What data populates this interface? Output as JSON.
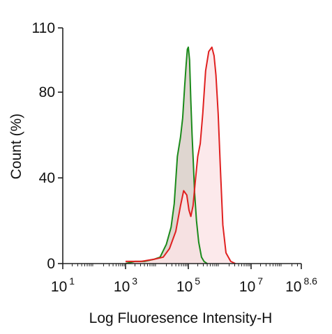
{
  "chart_data": {
    "type": "area",
    "xlabel": "Log Fluoresence Intensity-H",
    "ylabel": "Count  (%)",
    "x_scale": "log10",
    "xlim": [
      1,
      8.6
    ],
    "ylim": [
      0,
      110
    ],
    "x_ticks": [
      {
        "base": "10",
        "exp": "1",
        "value": 1
      },
      {
        "base": "10",
        "exp": "3",
        "value": 3
      },
      {
        "base": "10",
        "exp": "5",
        "value": 5
      },
      {
        "base": "10",
        "exp": "7",
        "value": 7
      },
      {
        "base": "10",
        "exp": "8.6",
        "value": 8.6
      }
    ],
    "y_ticks": [
      "0",
      "40",
      "80",
      "110"
    ],
    "y_tick_values": [
      0,
      40,
      80,
      110
    ],
    "grid": false,
    "legend": "none",
    "series": [
      {
        "color": "#1a8a1a",
        "fill": "#d9cfc8",
        "x": [
          3.0,
          3.3,
          3.6,
          3.9,
          4.1,
          4.3,
          4.45,
          4.55,
          4.65,
          4.75,
          4.82,
          4.88,
          4.93,
          4.97,
          5.0,
          5.04,
          5.08,
          5.12,
          5.16,
          5.2,
          5.26,
          5.33,
          5.42,
          5.5,
          5.6
        ],
        "y": [
          0,
          1,
          1,
          2,
          3,
          9,
          17,
          28,
          50,
          59,
          68,
          82,
          93,
          100,
          101,
          95,
          76,
          60,
          47,
          33,
          20,
          10,
          3,
          1,
          0
        ]
      },
      {
        "color": "#e02020",
        "fill": "#fbe3e6",
        "x": [
          3.0,
          3.5,
          3.9,
          4.2,
          4.4,
          4.6,
          4.75,
          4.85,
          4.95,
          5.02,
          5.08,
          5.15,
          5.22,
          5.3,
          5.38,
          5.46,
          5.55,
          5.65,
          5.75,
          5.82,
          5.88,
          5.95,
          6.02,
          6.1,
          6.2,
          6.35,
          6.5
        ],
        "y": [
          1,
          1,
          2,
          3,
          7,
          15,
          27,
          34,
          32,
          25,
          22,
          27,
          38,
          50,
          56,
          70,
          90,
          99,
          101,
          97,
          88,
          70,
          45,
          18,
          5,
          1,
          0
        ]
      }
    ]
  }
}
